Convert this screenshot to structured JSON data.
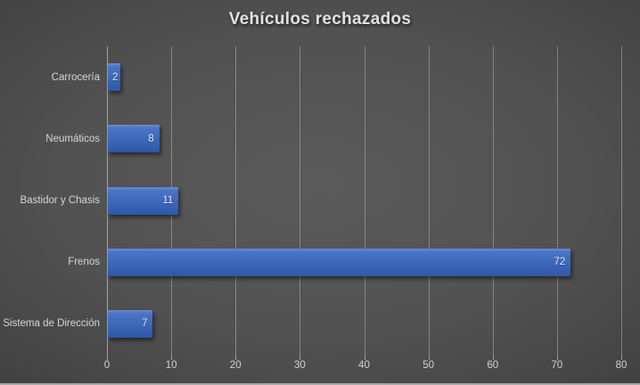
{
  "title": "Vehículos rechazados",
  "colors": {
    "background_center": "#585858",
    "background_edge": "#272727",
    "bar_fill": "#3d67b8",
    "bar_highlight": "#6d8bd2",
    "bar_shadow_edge": "#2f57a6",
    "gridline": "rgba(255,255,255,0.30)",
    "axis_line": "rgba(255,255,255,0.48)",
    "title_text": "#e2e2e2",
    "label_text": "#d6d6d6",
    "value_label_text": "#e4e9f2"
  },
  "chart_data": {
    "type": "bar",
    "orientation": "horizontal",
    "title": "Vehículos rechazados",
    "categories": [
      "Carrocería",
      "Neumáticos",
      "Bastidor y Chasis",
      "Frenos",
      "Sistema de Dirección"
    ],
    "values": [
      2,
      8,
      11,
      72,
      7
    ],
    "value_labels": [
      "2",
      "8",
      "11",
      "72",
      "7"
    ],
    "xlabel": "",
    "ylabel": "",
    "xlim": [
      0,
      80
    ],
    "x_ticks": [
      0,
      10,
      20,
      30,
      40,
      50,
      60,
      70,
      80
    ],
    "grid": true,
    "legend": false,
    "data_labels_position": "inside-end"
  }
}
